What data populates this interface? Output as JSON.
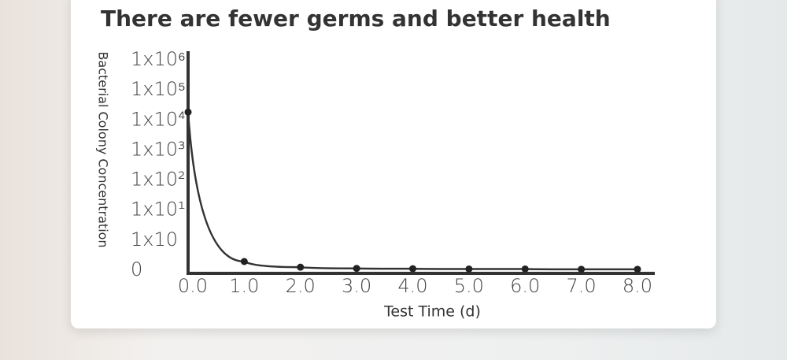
{
  "chart_data": {
    "type": "line",
    "title": "There are fewer germs and better health",
    "x_label": "Test Time (d)",
    "y_label": "Bacterial Colony Concentration",
    "x": [
      0,
      1,
      2,
      3,
      4,
      5,
      6,
      7,
      8
    ],
    "series": [
      {
        "name": "Bacterial Colony Concentration",
        "color": "#333333",
        "values": [
          5.26,
          0.29,
          0.1,
          0.06,
          0.05,
          0.04,
          0.04,
          0.03,
          0.03
        ]
      }
    ],
    "xlim": [
      0,
      8
    ],
    "xticks": [
      {
        "value": 0,
        "label": "0.0"
      },
      {
        "value": 1,
        "label": "1.0"
      },
      {
        "value": 2,
        "label": "2.0"
      },
      {
        "value": 3,
        "label": "3.0"
      },
      {
        "value": 4,
        "label": "4.0"
      },
      {
        "value": 5,
        "label": "5.0"
      },
      {
        "value": 6,
        "label": "6.0"
      },
      {
        "value": 7,
        "label": "7.0"
      },
      {
        "value": 8,
        "label": "8.0"
      }
    ],
    "ylim": [
      0,
      7
    ],
    "yticks": [
      0,
      {
        "value": 1,
        "label": "1x10"
      },
      {
        "value": 2,
        "label": "1x10¹"
      },
      {
        "value": 3,
        "label": "1x10²"
      },
      {
        "value": 4,
        "label": "1x10³"
      },
      {
        "value": 5,
        "label": "1x10⁴"
      },
      {
        "value": 6,
        "label": "1x10⁵"
      },
      {
        "value": 7,
        "label": "1x10⁶"
      }
    ]
  }
}
